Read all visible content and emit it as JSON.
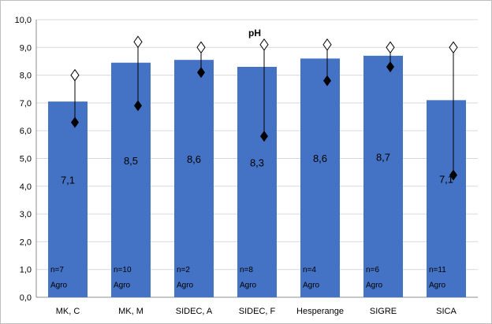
{
  "chart_data": {
    "type": "bar",
    "title": "pH",
    "xlabel": "",
    "ylabel": "",
    "ylim": [
      0,
      10
    ],
    "yticks": [
      "0,0",
      "1,0",
      "2,0",
      "3,0",
      "4,0",
      "5,0",
      "6,0",
      "7,0",
      "8,0",
      "9,0",
      "10,0"
    ],
    "grid": true,
    "bar_color": "#4472c4",
    "categories": [
      "MK, C",
      "MK, M",
      "SIDEC, A",
      "SIDEC, F",
      "Hesperange",
      "SIGRE",
      "SICA"
    ],
    "values": [
      7.05,
      8.45,
      8.55,
      8.3,
      8.6,
      8.7,
      7.1
    ],
    "value_labels": [
      "7,1",
      "8,5",
      "8,6",
      "8,3",
      "8,6",
      "8,7",
      "7,1"
    ],
    "n_labels": [
      "n=7",
      "n=10",
      "n=2",
      "n=8",
      "n=4",
      "n=6",
      "n=11"
    ],
    "sub_labels": [
      "Agro",
      "Agro",
      "Agro",
      "Agro",
      "Agro",
      "Agro",
      "Agro"
    ],
    "max": [
      8.0,
      9.2,
      9.0,
      9.1,
      9.1,
      9.0,
      9.0
    ],
    "min": [
      6.3,
      6.9,
      8.1,
      5.8,
      7.8,
      8.3,
      4.4
    ]
  }
}
